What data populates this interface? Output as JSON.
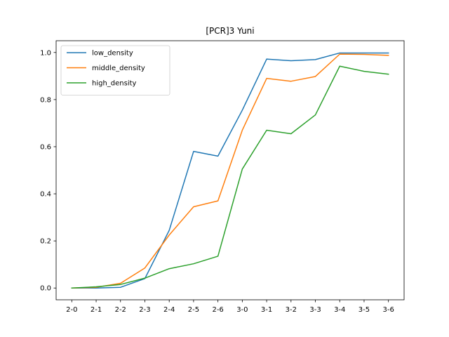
{
  "chart_data": {
    "type": "line",
    "title": "[PCR]3 Yuni",
    "xlabel": "",
    "ylabel": "",
    "categories": [
      "2-0",
      "2-1",
      "2-2",
      "2-3",
      "2-4",
      "2-5",
      "2-6",
      "3-0",
      "3-1",
      "3-2",
      "3-3",
      "3-4",
      "3-5",
      "3-6"
    ],
    "ylim": [
      -0.05,
      1.05
    ],
    "yticks": [
      0.0,
      0.2,
      0.4,
      0.6,
      0.8,
      1.0
    ],
    "ytick_labels": [
      "0.0",
      "0.2",
      "0.4",
      "0.6",
      "0.8",
      "1.0"
    ],
    "grid": false,
    "legend_position": "upper-left",
    "series": [
      {
        "name": "low_density",
        "color": "#1f77b4",
        "values": [
          0.0,
          0.0,
          0.003,
          0.04,
          0.245,
          0.58,
          0.56,
          0.755,
          0.972,
          0.965,
          0.97,
          0.998,
          0.998,
          0.998
        ]
      },
      {
        "name": "middle_density",
        "color": "#ff7f0e",
        "values": [
          0.0,
          0.003,
          0.02,
          0.085,
          0.225,
          0.345,
          0.37,
          0.67,
          0.89,
          0.878,
          0.898,
          0.993,
          0.992,
          0.988
        ]
      },
      {
        "name": "high_density",
        "color": "#2ca02c",
        "values": [
          0.0,
          0.005,
          0.015,
          0.042,
          0.082,
          0.103,
          0.135,
          0.505,
          0.67,
          0.655,
          0.735,
          0.942,
          0.92,
          0.908
        ]
      }
    ]
  }
}
